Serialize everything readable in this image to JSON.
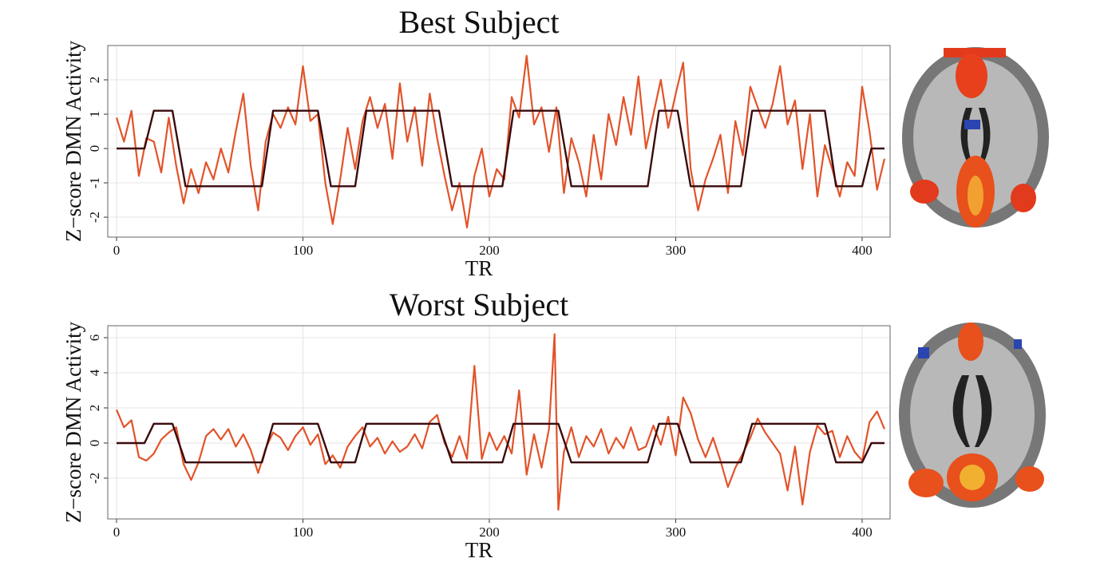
{
  "chart_data": [
    {
      "type": "line",
      "title": "Best Subject",
      "x_label": "TR",
      "y_label": "Z−score DMN Activity",
      "xlim": [
        -4.7,
        415
      ],
      "xticks": [
        0,
        100,
        200,
        300,
        400
      ],
      "ylim": [
        -2.58,
        3.0
      ],
      "yticks": [
        -2,
        -1,
        0,
        1,
        2
      ],
      "grid": true,
      "series": [
        {
          "color": "#e2532a",
          "x": [
            0,
            4,
            8,
            12,
            16,
            20,
            24,
            28,
            32,
            36,
            40,
            44,
            48,
            52,
            56,
            60,
            64,
            68,
            72,
            76,
            80,
            84,
            88,
            92,
            96,
            100,
            104,
            108,
            112,
            116,
            120,
            124,
            128,
            132,
            136,
            140,
            144,
            148,
            152,
            156,
            160,
            164,
            168,
            172,
            176,
            180,
            184,
            188,
            192,
            196,
            200,
            204,
            208,
            212,
            216,
            220,
            224,
            228,
            232,
            236,
            240,
            244,
            248,
            252,
            256,
            260,
            264,
            268,
            272,
            276,
            280,
            284,
            288,
            292,
            296,
            300,
            304,
            308,
            312,
            316,
            320,
            324,
            328,
            332,
            336,
            340,
            344,
            348,
            352,
            356,
            360,
            364,
            368,
            372,
            376,
            380,
            384,
            388,
            392,
            396,
            400,
            404,
            408,
            412
          ],
          "values": [
            0.9,
            0.2,
            1.1,
            -0.8,
            0.3,
            0.2,
            -0.7,
            0.9,
            -0.5,
            -1.6,
            -0.6,
            -1.3,
            -0.4,
            -0.9,
            0.0,
            -0.7,
            0.5,
            1.6,
            -0.5,
            -1.8,
            0.2,
            1.0,
            0.6,
            1.2,
            0.7,
            2.4,
            0.8,
            1.0,
            -1.0,
            -2.2,
            -0.9,
            0.6,
            -0.6,
            0.8,
            1.5,
            0.6,
            1.3,
            -0.3,
            1.9,
            0.2,
            1.2,
            -0.5,
            1.6,
            0.3,
            -0.8,
            -1.8,
            -1.0,
            -2.3,
            -0.8,
            0.0,
            -1.4,
            -0.6,
            -0.9,
            1.5,
            0.9,
            2.7,
            0.7,
            1.2,
            -0.1,
            1.2,
            -1.3,
            0.3,
            -0.4,
            -1.4,
            0.4,
            -0.9,
            1.0,
            0.1,
            1.5,
            0.4,
            2.1,
            0.0,
            1.0,
            2.0,
            0.6,
            1.6,
            2.5,
            -0.6,
            -1.8,
            -0.9,
            -0.3,
            0.4,
            -1.3,
            0.8,
            -0.2,
            1.8,
            1.2,
            0.6,
            1.3,
            2.4,
            0.7,
            1.4,
            -0.6,
            1.0,
            -1.4,
            0.1,
            -0.6,
            -1.4,
            -0.4,
            -0.8,
            1.8,
            0.5,
            -1.2,
            -0.3
          ]
        },
        {
          "color": "#3a0a0c",
          "x": [
            0,
            15,
            20,
            30,
            37,
            78,
            84,
            108,
            115,
            128,
            134,
            173,
            180,
            207,
            213,
            237,
            244,
            285,
            291,
            301,
            308,
            335,
            341,
            380,
            386,
            400,
            405,
            412
          ],
          "values": [
            0,
            0,
            1.1,
            1.1,
            -1.1,
            -1.1,
            1.1,
            1.1,
            -1.1,
            -1.1,
            1.1,
            1.1,
            -1.1,
            -1.1,
            1.1,
            1.1,
            -1.1,
            -1.1,
            1.1,
            1.1,
            -1.1,
            -1.1,
            1.1,
            1.1,
            -1.1,
            -1.1,
            0,
            0
          ]
        }
      ]
    },
    {
      "type": "line",
      "title": "Worst Subject",
      "x_label": "TR",
      "y_label": "Z−score DMN Activity",
      "xlim": [
        -4.7,
        415
      ],
      "xticks": [
        0,
        100,
        200,
        300,
        400
      ],
      "ylim": [
        -4.32,
        6.68
      ],
      "yticks": [
        -2,
        0,
        2,
        4,
        6
      ],
      "grid": true,
      "series": [
        {
          "color": "#e2532a",
          "x": [
            0,
            4,
            8,
            12,
            16,
            20,
            24,
            28,
            32,
            36,
            40,
            44,
            48,
            52,
            56,
            60,
            64,
            68,
            72,
            76,
            80,
            84,
            88,
            92,
            96,
            100,
            104,
            108,
            112,
            116,
            120,
            124,
            128,
            132,
            136,
            140,
            144,
            148,
            152,
            156,
            160,
            164,
            168,
            172,
            176,
            180,
            184,
            188,
            192,
            196,
            200,
            204,
            208,
            212,
            216,
            220,
            224,
            228,
            232,
            235,
            237,
            240,
            244,
            248,
            252,
            256,
            260,
            264,
            268,
            272,
            276,
            280,
            284,
            288,
            292,
            296,
            300,
            304,
            308,
            312,
            316,
            320,
            324,
            328,
            332,
            336,
            340,
            344,
            348,
            352,
            356,
            360,
            364,
            368,
            372,
            376,
            380,
            384,
            388,
            392,
            396,
            400,
            404,
            408,
            412
          ],
          "values": [
            1.9,
            0.9,
            1.3,
            -0.8,
            -1.0,
            -0.6,
            0.2,
            0.6,
            0.9,
            -1.2,
            -2.1,
            -1.1,
            0.4,
            0.8,
            0.2,
            0.8,
            -0.2,
            0.5,
            -0.4,
            -1.7,
            -0.3,
            0.6,
            0.3,
            -0.4,
            0.4,
            0.9,
            -0.1,
            0.5,
            -1.2,
            -0.7,
            -1.4,
            -0.2,
            0.4,
            0.9,
            -0.2,
            0.3,
            -0.6,
            0.1,
            -0.5,
            -0.2,
            0.5,
            -0.3,
            1.2,
            1.6,
            0.0,
            -0.8,
            0.4,
            -0.9,
            4.4,
            -0.9,
            0.6,
            -0.4,
            0.4,
            -0.6,
            3.0,
            -1.8,
            0.5,
            -1.4,
            0.8,
            6.2,
            -3.8,
            -0.5,
            0.9,
            -0.8,
            0.4,
            -0.2,
            0.8,
            -0.6,
            0.3,
            -0.3,
            0.9,
            -0.4,
            -0.2,
            1.0,
            -0.1,
            1.5,
            -0.7,
            2.6,
            1.7,
            0.2,
            -0.8,
            0.3,
            -1.0,
            -2.5,
            -1.4,
            -0.6,
            0.3,
            1.4,
            0.6,
            0.0,
            -0.6,
            -2.7,
            -0.2,
            -3.5,
            -0.5,
            1.0,
            0.5,
            0.7,
            -0.8,
            0.4,
            -0.5,
            -1.0,
            1.2,
            1.8,
            0.8
          ]
        },
        {
          "color": "#3a0a0c",
          "x": [
            0,
            15,
            20,
            30,
            37,
            78,
            84,
            108,
            115,
            128,
            134,
            173,
            180,
            207,
            213,
            237,
            244,
            285,
            291,
            301,
            308,
            335,
            341,
            380,
            386,
            400,
            405,
            412
          ],
          "values": [
            0,
            0,
            1.1,
            1.1,
            -1.1,
            -1.1,
            1.1,
            1.1,
            -1.1,
            -1.1,
            1.1,
            1.1,
            -1.1,
            -1.1,
            1.1,
            1.1,
            -1.1,
            -1.1,
            1.1,
            1.1,
            -1.1,
            -1.1,
            1.1,
            1.1,
            -1.1,
            -1.1,
            0,
            0
          ]
        }
      ]
    }
  ]
}
